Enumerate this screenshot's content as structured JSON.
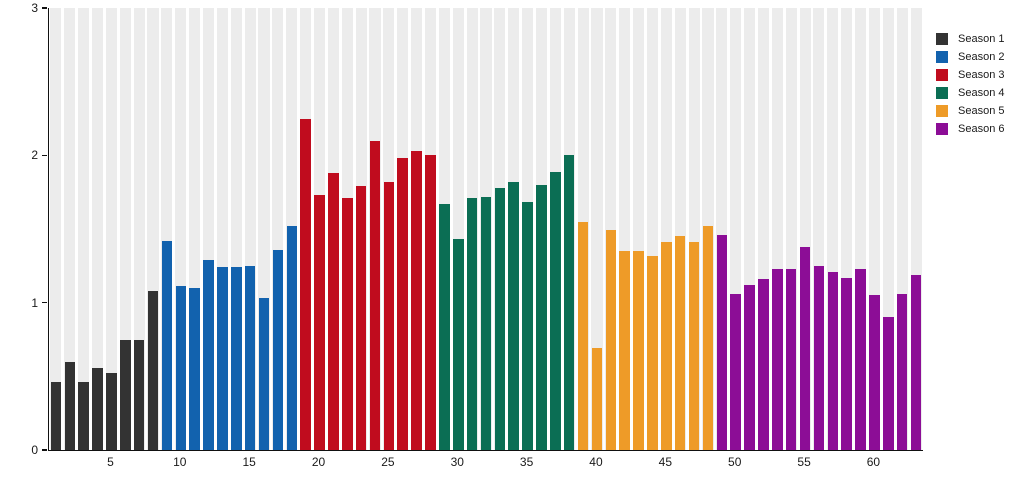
{
  "chart_data": {
    "type": "bar",
    "title": "",
    "xlabel": "",
    "ylabel": "",
    "ylim": [
      0,
      3
    ],
    "y_ticks": [
      0,
      1,
      2,
      3
    ],
    "x_ticks": [
      5,
      10,
      15,
      20,
      25,
      30,
      35,
      40,
      45,
      50,
      55,
      60
    ],
    "x_range": [
      1,
      63
    ],
    "grid": "light-gray background stripe behind every bar slot",
    "legend_position": "right",
    "background_stripe_color": "#ececec",
    "axis_color": "#111111",
    "series": [
      {
        "name": "Season 1",
        "color": "#333333",
        "episodes": [
          1,
          8
        ],
        "values": [
          0.46,
          0.6,
          0.46,
          0.56,
          0.52,
          0.75,
          0.75,
          1.08
        ]
      },
      {
        "name": "Season 2",
        "color": "#1262ae",
        "episodes": [
          9,
          18
        ],
        "values": [
          1.42,
          1.11,
          1.1,
          1.29,
          1.24,
          1.24,
          1.25,
          1.03,
          1.36,
          1.52
        ]
      },
      {
        "name": "Season 3",
        "color": "#c00c1e",
        "episodes": [
          19,
          28
        ],
        "values": [
          2.25,
          1.73,
          1.88,
          1.71,
          1.79,
          2.1,
          1.82,
          1.98,
          2.03,
          2.0
        ]
      },
      {
        "name": "Season 4",
        "color": "#0b6e54",
        "episodes": [
          29,
          38
        ],
        "values": [
          1.67,
          1.43,
          1.71,
          1.72,
          1.78,
          1.82,
          1.68,
          1.8,
          1.89,
          2.0
        ]
      },
      {
        "name": "Season 5",
        "color": "#ee9b28",
        "episodes": [
          39,
          48
        ],
        "values": [
          1.55,
          0.69,
          1.49,
          1.35,
          1.35,
          1.32,
          1.41,
          1.45,
          1.41,
          1.52
        ]
      },
      {
        "name": "Season 6",
        "color": "#8c0d96",
        "episodes": [
          49,
          63
        ],
        "values": [
          1.46,
          1.06,
          1.12,
          1.16,
          1.23,
          1.23,
          1.38,
          1.25,
          1.21,
          1.17,
          1.23,
          1.05,
          0.9,
          1.06,
          1.19
        ]
      }
    ]
  }
}
